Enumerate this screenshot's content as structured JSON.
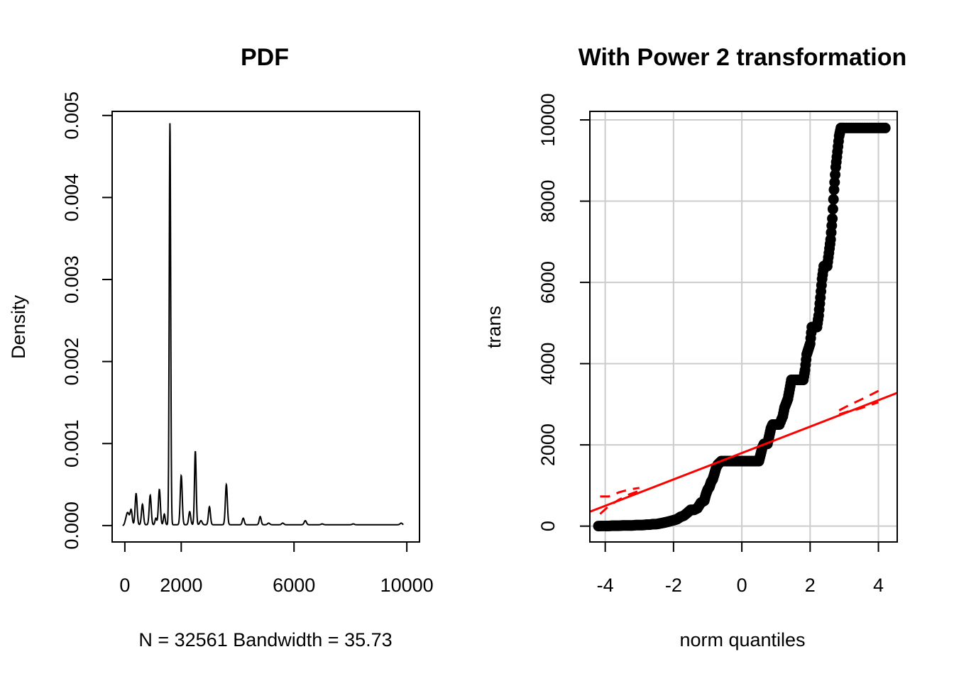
{
  "chart_data": [
    {
      "type": "line",
      "title": "PDF",
      "xlabel": "N = 32561   Bandwidth = 35.73",
      "ylabel": "Density",
      "xlim": [
        -450,
        10450
      ],
      "ylim": [
        -0.0002,
        0.00505
      ],
      "x_ticks": [
        0,
        2000,
        6000,
        10000
      ],
      "x_tick_labels": [
        "0",
        "2000",
        "6000",
        "10000"
      ],
      "y_ticks": [
        0,
        0.001,
        0.002,
        0.003,
        0.004,
        0.005
      ],
      "y_tick_labels": [
        "0.000",
        "0.001",
        "0.002",
        "0.003",
        "0.004",
        "0.005"
      ],
      "grid": false,
      "color": "#000000",
      "baseline": 1e-05,
      "peaks": [
        {
          "x": 100,
          "y": 0.00015,
          "w": 60
        },
        {
          "x": 225,
          "y": 0.00017,
          "w": 35
        },
        {
          "x": 400,
          "y": 0.00038,
          "w": 35
        },
        {
          "x": 625,
          "y": 0.00025,
          "w": 35
        },
        {
          "x": 900,
          "y": 0.00036,
          "w": 35
        },
        {
          "x": 1100,
          "y": 8e-05,
          "w": 30
        },
        {
          "x": 1225,
          "y": 0.00043,
          "w": 35
        },
        {
          "x": 1400,
          "y": 0.00013,
          "w": 30
        },
        {
          "x": 1600,
          "y": 0.0049,
          "w": 26
        },
        {
          "x": 2000,
          "y": 0.0006,
          "w": 35
        },
        {
          "x": 2300,
          "y": 0.00016,
          "w": 35
        },
        {
          "x": 2500,
          "y": 0.0009,
          "w": 30
        },
        {
          "x": 2700,
          "y": 5e-05,
          "w": 40
        },
        {
          "x": 3000,
          "y": 0.00022,
          "w": 35
        },
        {
          "x": 3600,
          "y": 0.00049,
          "w": 35
        },
        {
          "x": 4200,
          "y": 8e-05,
          "w": 35
        },
        {
          "x": 4800,
          "y": 0.0001,
          "w": 35
        },
        {
          "x": 5100,
          "y": 2e-05,
          "w": 40
        },
        {
          "x": 5600,
          "y": 2e-05,
          "w": 40
        },
        {
          "x": 6400,
          "y": 5e-05,
          "w": 40
        },
        {
          "x": 7000,
          "y": 1e-05,
          "w": 40
        },
        {
          "x": 8100,
          "y": 1e-05,
          "w": 40
        },
        {
          "x": 9800,
          "y": 2e-05,
          "w": 40
        }
      ],
      "x_range": [
        -80,
        9880
      ]
    },
    {
      "type": "scatter",
      "title": "With Power 2 transformation",
      "xlabel": "norm quantiles",
      "ylabel": "trans",
      "xlim": [
        -4.45,
        4.55
      ],
      "ylim": [
        -390,
        10210
      ],
      "x_ticks": [
        -4,
        -2,
        0,
        2,
        4
      ],
      "x_tick_labels": [
        "-4",
        "-2",
        "0",
        "2",
        "4"
      ],
      "y_ticks": [
        0,
        2000,
        4000,
        6000,
        8000,
        10000
      ],
      "y_tick_labels": [
        "0",
        "2000",
        "4000",
        "6000",
        "8000",
        "10000"
      ],
      "grid": true,
      "point_color": "#000000",
      "points": [
        [
          -4.2,
          1
        ],
        [
          -4.0,
          4
        ],
        [
          -3.9,
          4
        ],
        [
          -3.8,
          9
        ],
        [
          -3.7,
          9
        ],
        [
          -3.6,
          9
        ],
        [
          -3.5,
          16
        ],
        [
          -3.4,
          16
        ],
        [
          -3.3,
          16
        ],
        [
          -3.2,
          16
        ],
        [
          -3.1,
          25
        ],
        [
          -3.0,
          25
        ],
        [
          -2.9,
          25
        ],
        [
          -2.8,
          36
        ],
        [
          -2.7,
          36
        ],
        [
          -2.6,
          49
        ],
        [
          -2.5,
          49
        ],
        [
          -2.4,
          64
        ],
        [
          -2.3,
          81
        ],
        [
          -2.2,
          100
        ],
        [
          -2.1,
          121
        ],
        [
          -2.0,
          144
        ],
        [
          -1.9,
          169
        ],
        [
          -1.8,
          225
        ],
        [
          -1.7,
          256
        ],
        [
          -1.6,
          324
        ],
        [
          -1.5,
          400
        ],
        [
          -1.4,
          400
        ],
        [
          -1.3,
          441
        ],
        [
          -1.2,
          576
        ],
        [
          -1.1,
          625
        ],
        [
          -1.05,
          784
        ],
        [
          -1.0,
          900
        ],
        [
          -0.95,
          961
        ],
        [
          -0.9,
          1089
        ],
        [
          -0.85,
          1156
        ],
        [
          -0.8,
          1296
        ],
        [
          -0.75,
          1444
        ],
        [
          -0.7,
          1521
        ],
        [
          -0.6,
          1600
        ],
        [
          -0.5,
          1600
        ],
        [
          -0.4,
          1600
        ],
        [
          -0.3,
          1600
        ],
        [
          -0.2,
          1600
        ],
        [
          -0.1,
          1600
        ],
        [
          0.0,
          1600
        ],
        [
          0.1,
          1600
        ],
        [
          0.2,
          1600
        ],
        [
          0.3,
          1600
        ],
        [
          0.4,
          1600
        ],
        [
          0.5,
          1600
        ],
        [
          0.55,
          1764
        ],
        [
          0.6,
          1936
        ],
        [
          0.65,
          2025
        ],
        [
          0.7,
          2025
        ],
        [
          0.75,
          2025
        ],
        [
          0.8,
          2209
        ],
        [
          0.85,
          2401
        ],
        [
          0.9,
          2500
        ],
        [
          1.0,
          2500
        ],
        [
          1.1,
          2500
        ],
        [
          1.2,
          2704
        ],
        [
          1.25,
          2916
        ],
        [
          1.3,
          3025
        ],
        [
          1.35,
          3136
        ],
        [
          1.4,
          3364
        ],
        [
          1.45,
          3600
        ],
        [
          1.5,
          3600
        ],
        [
          1.6,
          3600
        ],
        [
          1.7,
          3600
        ],
        [
          1.8,
          3600
        ],
        [
          1.85,
          3844
        ],
        [
          1.9,
          4225
        ],
        [
          1.95,
          4356
        ],
        [
          2.0,
          4489
        ],
        [
          2.05,
          4900
        ],
        [
          2.1,
          4900
        ],
        [
          2.15,
          4900
        ],
        [
          2.2,
          4900
        ],
        [
          2.25,
          5184
        ],
        [
          2.3,
          5625
        ],
        [
          2.35,
          6084
        ],
        [
          2.4,
          6400
        ],
        [
          2.45,
          6400
        ],
        [
          2.5,
          6400
        ],
        [
          2.55,
          6724
        ],
        [
          2.6,
          7056
        ],
        [
          2.65,
          7569
        ],
        [
          2.7,
          8281
        ],
        [
          2.75,
          8836
        ],
        [
          2.8,
          9216
        ],
        [
          2.85,
          9604
        ],
        [
          2.9,
          9801
        ],
        [
          3.0,
          9801
        ],
        [
          3.2,
          9801
        ],
        [
          3.4,
          9801
        ],
        [
          3.6,
          9801
        ],
        [
          3.8,
          9801
        ],
        [
          4.0,
          9801
        ],
        [
          4.2,
          9801
        ]
      ],
      "fit_line": {
        "intercept": 1800,
        "slope": 325,
        "color": "#ff0000"
      },
      "confidence_band": {
        "lower": [
          [
            -4.15,
            300
          ],
          [
            -3.9,
            490
          ],
          [
            -3.6,
            650
          ],
          [
            -3.3,
            780
          ],
          [
            -3.0,
            870
          ]
        ],
        "upper": [
          [
            -4.15,
            730
          ],
          [
            -3.9,
            730
          ],
          [
            -3.6,
            830
          ],
          [
            -3.3,
            900
          ],
          [
            -3.0,
            940
          ]
        ],
        "lower_r": [
          [
            2.85,
            2750
          ],
          [
            3.1,
            2820
          ],
          [
            3.4,
            2880
          ],
          [
            3.7,
            2960
          ],
          [
            4.0,
            3050
          ]
        ],
        "upper_r": [
          [
            2.85,
            2850
          ],
          [
            3.1,
            2960
          ],
          [
            3.4,
            3080
          ],
          [
            3.7,
            3200
          ],
          [
            4.05,
            3350
          ]
        ]
      }
    }
  ]
}
